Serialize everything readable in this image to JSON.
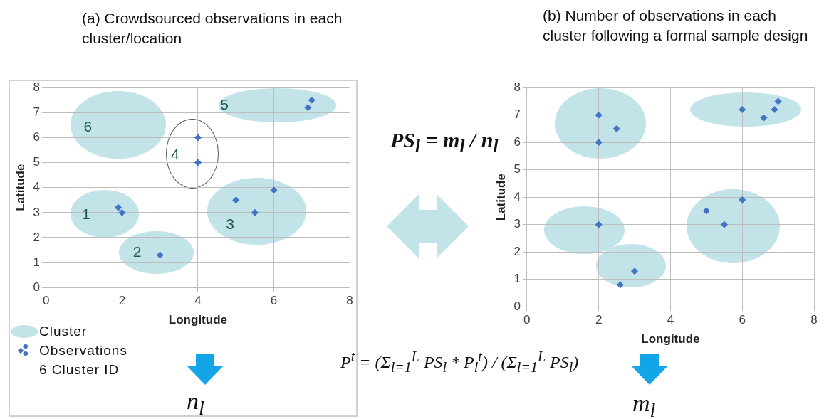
{
  "chart_data": [
    {
      "type": "scatter",
      "title": "(a) Crowdsourced observations in each cluster/location",
      "xlabel": "Longitude",
      "ylabel": "Latitude",
      "xlim": [
        0,
        8
      ],
      "ylim": [
        0,
        8
      ],
      "xticks": [
        0,
        2,
        4,
        6,
        8
      ],
      "yticks": [
        0,
        1,
        2,
        3,
        4,
        5,
        6,
        7,
        8
      ],
      "grid": true,
      "marker": "diamond",
      "legend": "bottom left",
      "series": [
        {
          "name": "Observations",
          "color": "#4472c4",
          "x": [
            1.9,
            2,
            3,
            4,
            4,
            5,
            5.5,
            6,
            6.9,
            7
          ],
          "values": [
            3.2,
            3,
            1.3,
            6,
            5,
            3.5,
            3,
            3.9,
            7.2,
            7.5
          ]
        }
      ],
      "annotations": [
        "6",
        "4",
        "5",
        "1",
        "2",
        "3",
        "Cluster",
        "6 Cluster ID"
      ]
    },
    {
      "type": "scatter",
      "title": "(b) Number of observations in each cluster following a formal sample design",
      "xlabel": "Longitude",
      "ylabel": "Latitude",
      "xlim": [
        0,
        8
      ],
      "ylim": [
        0,
        8
      ],
      "xticks": [
        0,
        2,
        4,
        6,
        8
      ],
      "yticks": [
        0,
        1,
        2,
        3,
        4,
        5,
        6,
        7,
        8
      ],
      "grid": true,
      "marker": "diamond",
      "series": [
        {
          "color": "#4472c4",
          "x": [
            2,
            2.5,
            2,
            2,
            2.6,
            3,
            5,
            5.5,
            6,
            6,
            6.6,
            6.9,
            7
          ],
          "values": [
            7,
            6.5,
            6,
            3,
            0.8,
            1.3,
            3.5,
            3,
            3.9,
            7.2,
            6.9,
            7.2,
            7.5
          ]
        }
      ]
    },
    {
      "type": "other",
      "annotations": [
        "PS$_{l}$ = m$_{l}$ / n$_{l}$",
        "P$^{t}$ = (Σ$_{l=1}$$^{L}$ PS$_{l}$ * P$_{l}$$^{t}$) / (Σ$_{l=1}$$^{L}$ PS$_{l}$)",
        "n$_{l}$",
        "m$_{l}$"
      ]
    }
  ]
}
